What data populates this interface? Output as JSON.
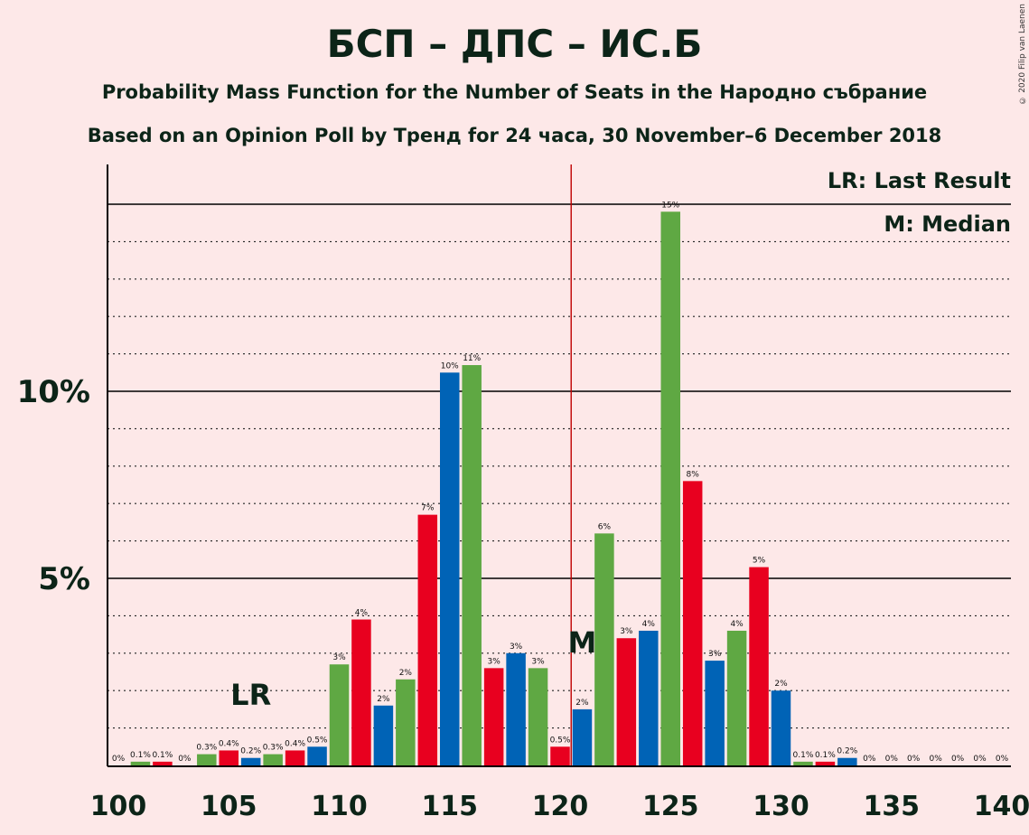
{
  "title": "БСП – ДПС – ИС.Б",
  "subtitle1": "Probability Mass Function for the Number of Seats in the Народно събрание",
  "subtitle2": "Based on an Opinion Poll by Тренд for 24 часа, 30 November–6 December 2018",
  "copyright": "© 2020 Filip van Laenen",
  "legend": {
    "lr": "LR: Last Result",
    "median": "M: Median"
  },
  "markers": {
    "lr_label": "LR",
    "median_label": "M",
    "last_result_seat": 106,
    "median_seat": 121
  },
  "colors": {
    "red": "#e8001f",
    "blue": "#0063b6",
    "green": "#5fa843",
    "background": "#fde8e8",
    "median_line": "#c00000"
  },
  "chart_data": {
    "type": "bar",
    "x": [
      100,
      101,
      102,
      103,
      104,
      105,
      106,
      107,
      108,
      109,
      110,
      111,
      112,
      113,
      114,
      115,
      116,
      117,
      118,
      119,
      120,
      121,
      122,
      123,
      124,
      125,
      126,
      127,
      128,
      129,
      130,
      131,
      132,
      133,
      134,
      135,
      136,
      137,
      138,
      139,
      140
    ],
    "values": [
      0,
      0.1,
      0.1,
      0,
      0.3,
      0.4,
      0.2,
      0.3,
      0.4,
      0.5,
      2.7,
      3.9,
      1.6,
      2.3,
      6.7,
      10.5,
      10.7,
      2.6,
      3.0,
      2.6,
      0.5,
      1.5,
      6.2,
      3.4,
      3.6,
      14.8,
      7.6,
      2.8,
      3.6,
      5.3,
      2.0,
      0.1,
      0.1,
      0.2,
      0,
      0,
      0,
      0,
      0,
      0,
      0
    ],
    "labels": [
      "0%",
      "0.1%",
      "0.1%",
      "0%",
      "0.3%",
      "0.4%",
      "0.2%",
      "0.3%",
      "0.4%",
      "0.5%",
      "3%",
      "4%",
      "2%",
      "2%",
      "7%",
      "10%",
      "11%",
      "3%",
      "3%",
      "3%",
      "0.5%",
      "2%",
      "6%",
      "3%",
      "4%",
      "15%",
      "8%",
      "3%",
      "4%",
      "5%",
      "2%",
      "0.1%",
      "0.1%",
      "0.2%",
      "0%",
      "0%",
      "0%",
      "0%",
      "0%",
      "0%",
      "0%"
    ],
    "bar_colors": [
      "green",
      "green",
      "red",
      "blue",
      "green",
      "red",
      "blue",
      "green",
      "red",
      "blue",
      "green",
      "red",
      "blue",
      "green",
      "red",
      "blue",
      "green",
      "red",
      "blue",
      "green",
      "red",
      "blue",
      "green",
      "red",
      "blue",
      "green",
      "red",
      "blue",
      "green",
      "red",
      "blue",
      "green",
      "red",
      "blue",
      "green",
      "red",
      "blue",
      "green",
      "red",
      "blue",
      "green"
    ],
    "x_ticks": [
      "100",
      "105",
      "110",
      "115",
      "120",
      "125",
      "130",
      "135",
      "140"
    ],
    "y_ticks": [
      "5%",
      "10%"
    ],
    "xlim": [
      100,
      140
    ],
    "ylim": [
      0,
      16
    ],
    "xlabel": "",
    "ylabel": ""
  }
}
